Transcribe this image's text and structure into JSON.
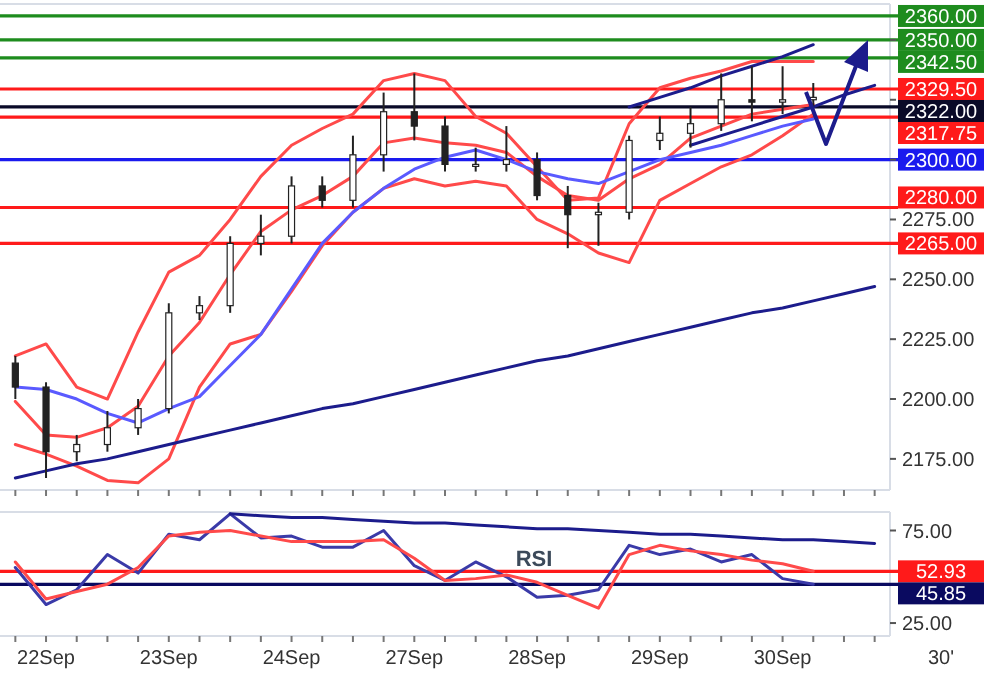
{
  "chart_data": [
    {
      "type": "candlestick",
      "ylim": [
        2162,
        2365
      ],
      "tick_labels": "y",
      "categories": [
        null,
        null,
        null,
        null,
        null,
        null,
        null,
        null,
        null,
        null,
        null,
        null,
        null,
        null,
        null,
        null,
        null,
        null,
        null,
        null,
        null,
        null,
        null,
        null,
        null,
        null,
        null,
        null,
        null
      ],
      "yticks": [
        {
          "value": 2175,
          "label": "2175.00"
        },
        {
          "value": 2200,
          "label": "2200.00"
        },
        {
          "value": 2225,
          "label": "2225.00"
        },
        {
          "value": 2250,
          "label": "2250.00"
        },
        {
          "value": 2275,
          "label": "2275.00"
        },
        {
          "value": 2300,
          "label": null
        },
        {
          "value": 2325,
          "label": null
        },
        {
          "value": 2350,
          "label": null
        }
      ],
      "ohlc": [
        [
          2215,
          2218,
          2200,
          2205
        ],
        [
          2205,
          2207,
          2167,
          2178
        ],
        [
          2178,
          2185,
          2174,
          2181
        ],
        [
          2181,
          2195,
          2178,
          2188
        ],
        [
          2188,
          2200,
          2185,
          2196
        ],
        [
          2196,
          2240,
          2194,
          2236
        ],
        [
          2236,
          2243,
          2233,
          2239
        ],
        [
          2239,
          2268,
          2236,
          2265
        ],
        [
          2265,
          2277,
          2260,
          2268
        ],
        [
          2268,
          2293,
          2265,
          2289
        ],
        [
          2289,
          2293,
          2280,
          2283
        ],
        [
          2283,
          2310,
          2280,
          2302
        ],
        [
          2302,
          2328,
          2295,
          2320
        ],
        [
          2320,
          2336,
          2308,
          2314
        ],
        [
          2314,
          2318,
          2295,
          2298
        ],
        [
          2298,
          2305,
          2295,
          2298
        ],
        [
          2298,
          2314,
          2295,
          2300
        ],
        [
          2300,
          2303,
          2283,
          2285
        ],
        [
          2285,
          2289,
          2263,
          2277
        ],
        [
          2277,
          2282,
          2264,
          2278
        ],
        [
          2278,
          2310,
          2275,
          2308
        ],
        [
          2308,
          2318,
          2304,
          2311
        ],
        [
          2311,
          2322,
          2305,
          2315
        ],
        [
          2315,
          2336,
          2312,
          2325
        ],
        [
          2325,
          2339,
          2316,
          2324
        ],
        [
          2324,
          2339,
          2319,
          2325
        ],
        [
          2325,
          2332,
          2322,
          2326
        ],
        null,
        null
      ],
      "series": [
        {
          "type": "line",
          "color": "#ff4a4a",
          "values": [
            2218,
            2223,
            2205,
            2200,
            2228,
            2253,
            2260,
            2275,
            2293,
            2306,
            2313,
            2319,
            2333,
            2336,
            2333,
            2318,
            2311,
            2297,
            2283,
            2284,
            2315,
            2330,
            2334,
            2337,
            2341,
            2341,
            2341,
            null,
            null
          ]
        },
        {
          "type": "line",
          "color": "#ff4a4a",
          "values": [
            2181,
            2177,
            2172,
            2166,
            2165,
            2175,
            2205,
            2223,
            2227,
            2245,
            2264,
            2278,
            2288,
            2292,
            2289,
            2291,
            2289,
            2275,
            2269,
            2261,
            2257,
            2283,
            2290,
            2297,
            2302,
            2310,
            2319,
            null,
            null
          ]
        },
        {
          "type": "line",
          "color": "#ff4a4a",
          "values": [
            2199,
            2185,
            2184,
            2188,
            2197,
            2218,
            2232,
            2252,
            2270,
            2279,
            2285,
            2293,
            2307,
            2309,
            2307,
            2306,
            2303,
            2293,
            2285,
            2283,
            2292,
            2298,
            2309,
            2314,
            2319,
            2321,
            2323,
            null,
            null
          ]
        },
        {
          "type": "line",
          "color": "#5a5aff",
          "values": [
            2205,
            2204,
            2200,
            2194,
            2190,
            2196,
            2201,
            2214,
            2227,
            2246,
            2265,
            2278,
            2288,
            2296,
            2301,
            2304,
            2300,
            2295,
            2292,
            2290,
            2295,
            2300,
            2303,
            2306,
            2310,
            2314,
            2317,
            null,
            null
          ]
        },
        {
          "type": "line",
          "color": "#1c1c8c",
          "values": [
            2167,
            2170,
            2173,
            2175,
            2178,
            2181,
            2184,
            2187,
            2190,
            2193,
            2196,
            2198,
            2201,
            2204,
            2207,
            2210,
            2213,
            2216,
            2218,
            2221,
            2224,
            2227,
            2230,
            2233,
            2236,
            2238,
            2241,
            2244,
            2247
          ]
        },
        {
          "type": "line",
          "color": "#1c1c8c",
          "values": [
            null,
            null,
            null,
            null,
            null,
            null,
            null,
            null,
            null,
            null,
            null,
            null,
            null,
            null,
            null,
            null,
            null,
            null,
            null,
            null,
            2322,
            2326,
            2330,
            2335,
            2339,
            2343,
            2348,
            null,
            null
          ]
        },
        {
          "type": "line",
          "color": "#1c1c8c",
          "values": [
            null,
            null,
            null,
            null,
            null,
            null,
            null,
            null,
            null,
            null,
            null,
            null,
            null,
            null,
            null,
            null,
            null,
            null,
            null,
            null,
            null,
            null,
            2306,
            2310,
            2314,
            2318,
            2322,
            2327,
            2331
          ]
        }
      ],
      "ref_lines": [
        {
          "axis": "y",
          "value": 2360,
          "label": "2360.00",
          "color": "#1e8c1e"
        },
        {
          "axis": "y",
          "value": 2350,
          "label": "2350.00",
          "color": "#1e8c1e"
        },
        {
          "axis": "y",
          "value": 2342.5,
          "label": "2342.50",
          "color": "#1e8c1e"
        },
        {
          "axis": "y",
          "value": 2329.5,
          "label": "2329.50",
          "color": "#ff1a1a"
        },
        {
          "axis": "y",
          "value": 2317.75,
          "label": "2317.75",
          "color": "#ff1a1a"
        },
        {
          "axis": "y",
          "value": 2300,
          "label": "2300.00",
          "color": "#1a1aee"
        },
        {
          "axis": "y",
          "value": 2280,
          "label": "2280.00",
          "color": "#ff1a1a"
        },
        {
          "axis": "y",
          "value": 2265,
          "label": "2265.00",
          "color": "#ff1a1a"
        },
        {
          "axis": "y",
          "value": 2322,
          "label": "2322.00",
          "color": "#0a0a28"
        }
      ]
    },
    {
      "type": "line",
      "title": "RSI",
      "xlabel": "30'",
      "ylim": [
        18,
        85
      ],
      "categories": [
        null,
        "22Sep",
        null,
        null,
        null,
        "23Sep",
        null,
        null,
        null,
        "24Sep",
        null,
        null,
        null,
        "27Sep",
        null,
        null,
        null,
        "28Sep",
        null,
        null,
        null,
        "29Sep",
        null,
        null,
        null,
        "30Sep",
        null,
        null,
        null
      ],
      "yticks": [
        {
          "value": 25,
          "label": "25.00"
        },
        {
          "value": 75,
          "label": "75.00"
        }
      ],
      "series": [
        {
          "color": "#3a3aa8",
          "values": [
            55,
            35,
            43,
            62,
            52,
            73,
            70,
            84,
            71,
            72,
            66,
            66,
            75,
            56,
            48,
            58,
            50,
            39,
            40,
            43,
            67,
            62,
            65,
            58,
            62,
            49,
            46,
            null,
            null
          ]
        },
        {
          "color": "#ff4a4a",
          "values": [
            58,
            38,
            42,
            46,
            55,
            72,
            74,
            75,
            72,
            69,
            69,
            69,
            70,
            60,
            48,
            49,
            51,
            47,
            40,
            33,
            62,
            67,
            64,
            62,
            59,
            57,
            53,
            null,
            null
          ]
        },
        {
          "color": "#1c1c8c",
          "values": [
            null,
            null,
            null,
            null,
            null,
            null,
            null,
            84,
            83,
            82,
            82,
            81,
            80,
            79,
            79,
            78,
            77,
            76,
            76,
            75,
            74,
            73,
            73,
            72,
            71,
            70,
            70,
            69,
            68
          ]
        }
      ],
      "ref_lines": [
        {
          "axis": "y",
          "value": 52.93,
          "label": "52.93",
          "color": "#ff1a1a"
        },
        {
          "axis": "y",
          "value": 45.85,
          "label": "45.85",
          "color": "#0a0a60"
        }
      ]
    }
  ]
}
